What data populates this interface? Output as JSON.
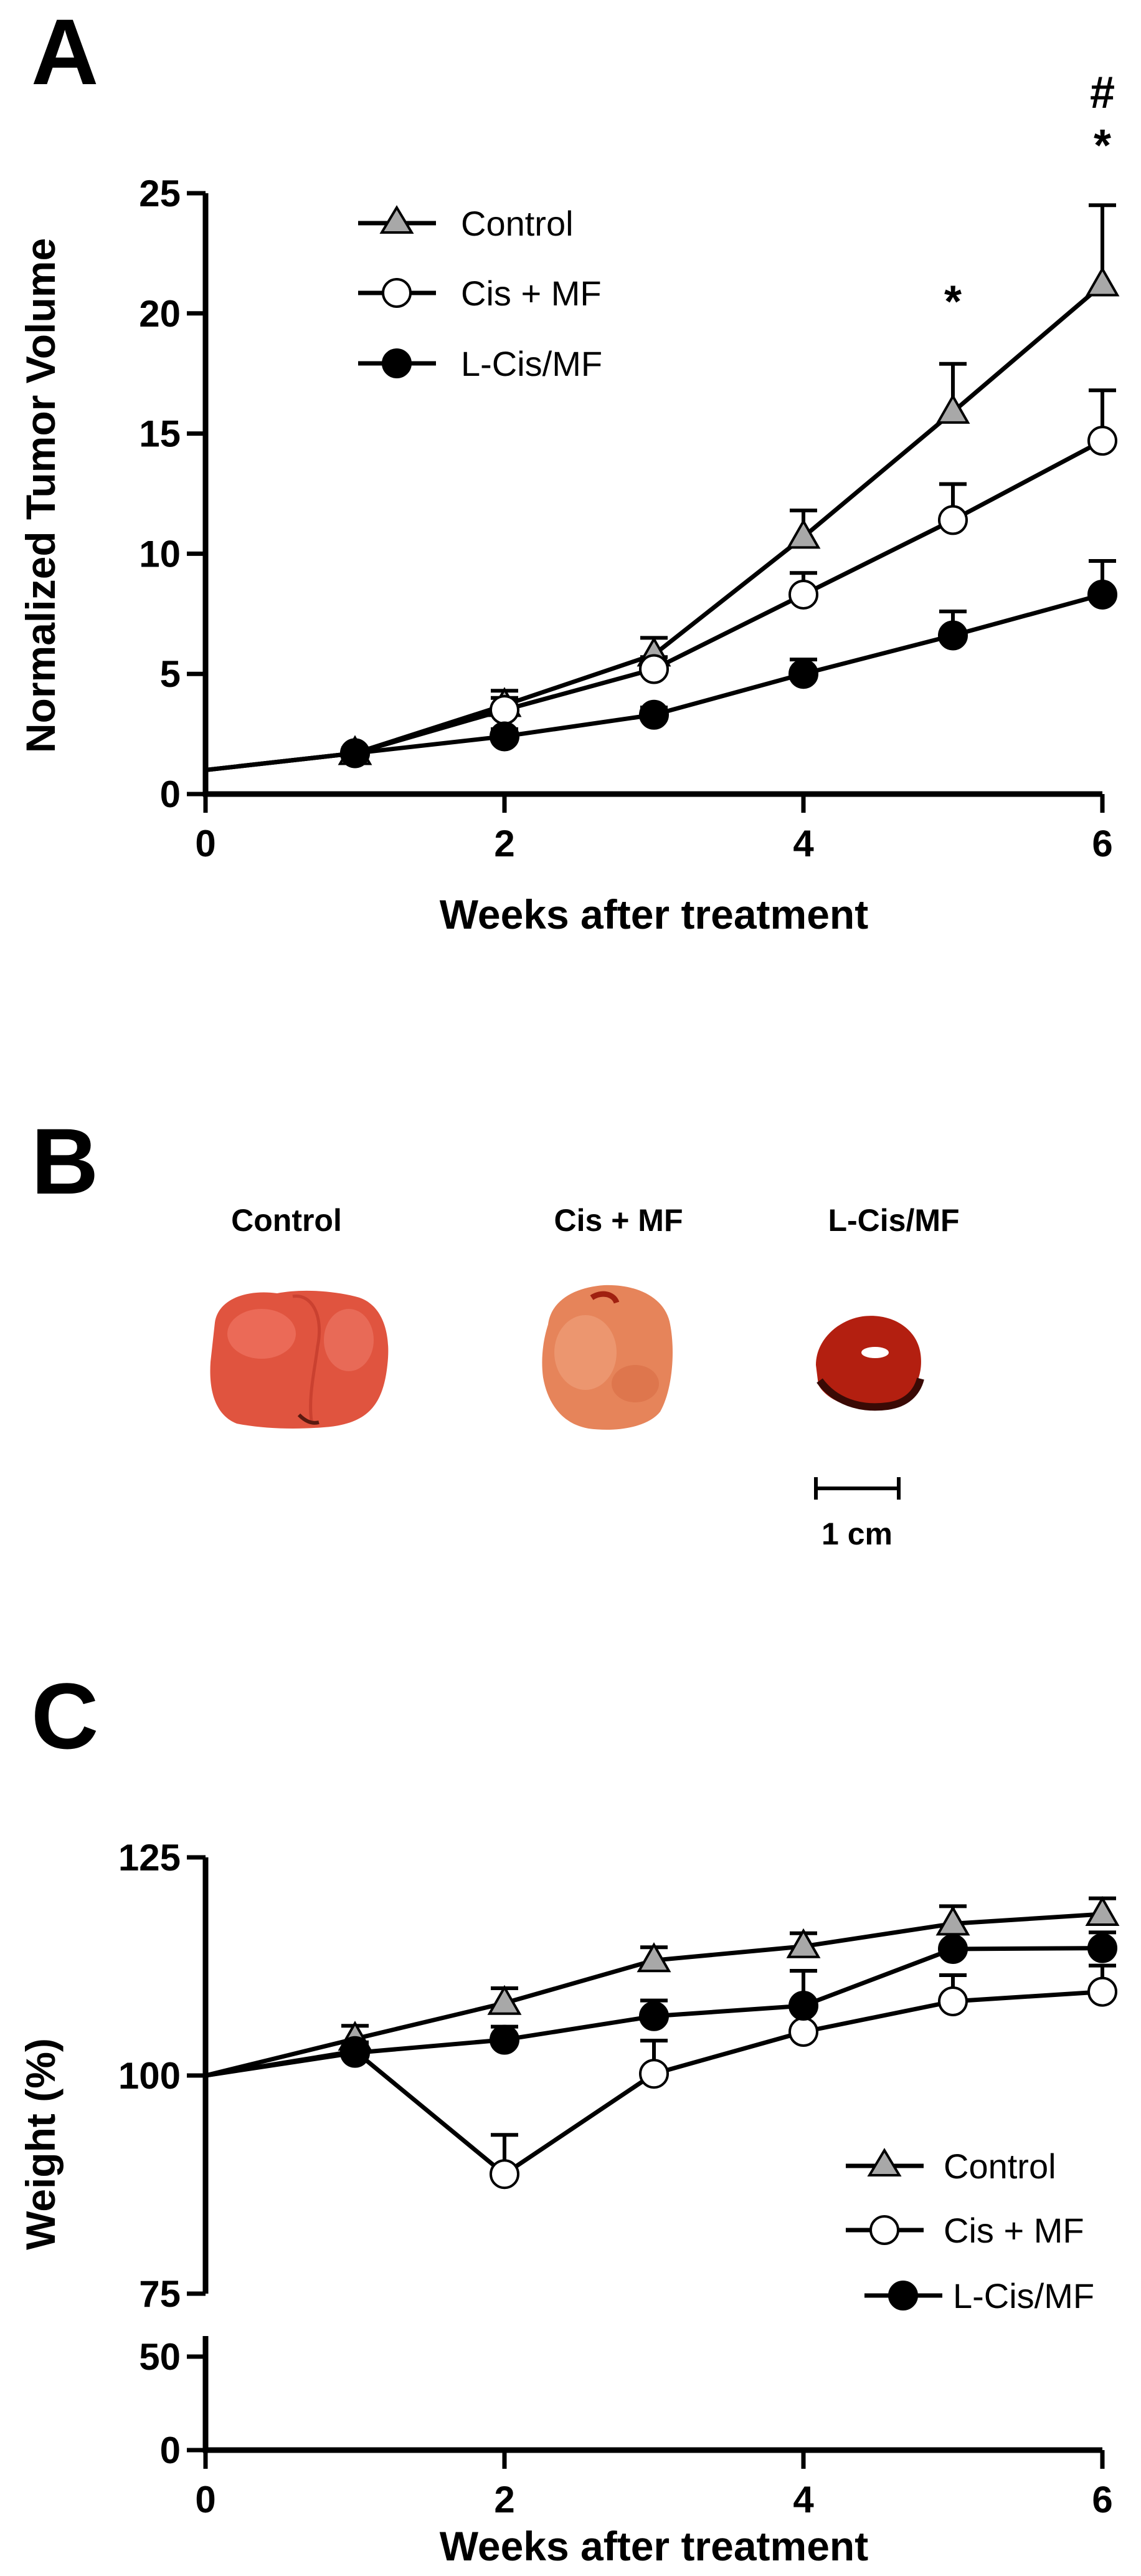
{
  "panels": {
    "a": {
      "label": "A"
    },
    "b": {
      "label": "B"
    },
    "c": {
      "label": "C"
    }
  },
  "colors": {
    "control": "#a8a8a8",
    "cis_mf": "#ffffff",
    "lcis_mf": "#000000",
    "axis": "#000000"
  },
  "photo": {
    "labels": [
      "Control",
      "Cis + MF",
      "L-Cis/MF"
    ],
    "scale_bar": "1 cm",
    "tumor_colors": [
      "#e0543f",
      "#e6845a",
      "#b31f10"
    ]
  },
  "chart_data": [
    {
      "type": "line",
      "panel": "A",
      "title": "",
      "xlabel": "Weeks after treatment",
      "ylabel": "Normalized Tumor Volume",
      "xlim": [
        0,
        6
      ],
      "ylim": [
        0,
        25
      ],
      "xticks": [
        0,
        2,
        4,
        6
      ],
      "yticks": [
        0,
        5,
        10,
        15,
        20,
        25
      ],
      "legend_position": "top-left",
      "x": [
        0,
        1,
        2,
        3,
        4,
        5,
        6
      ],
      "series": [
        {
          "name": "Control",
          "marker": "triangle",
          "values": [
            1.0,
            1.7,
            3.7,
            5.8,
            10.7,
            15.9,
            21.2
          ],
          "errors": [
            0,
            0.2,
            0.6,
            0.7,
            1.1,
            2.0,
            3.3
          ]
        },
        {
          "name": "Cis + MF",
          "marker": "circle-open",
          "values": [
            1.0,
            1.7,
            3.5,
            5.2,
            8.3,
            11.4,
            14.7
          ],
          "errors": [
            0,
            0.2,
            0.5,
            0.5,
            0.9,
            1.5,
            2.1
          ]
        },
        {
          "name": "L-Cis/MF",
          "marker": "circle-filled",
          "values": [
            1.0,
            1.7,
            2.4,
            3.3,
            5.0,
            6.6,
            8.3
          ],
          "errors": [
            0,
            0.2,
            0.3,
            0.3,
            0.6,
            1.0,
            1.4
          ]
        }
      ],
      "annotations": [
        {
          "text": "*",
          "x": 5,
          "y": 20.5
        },
        {
          "text": "*",
          "x": 6,
          "y": 27.0
        },
        {
          "text": "#",
          "x": 6,
          "y": 29.2
        }
      ]
    },
    {
      "type": "line",
      "panel": "C",
      "title": "",
      "xlabel": "Weeks after treatment",
      "ylabel": "Weight  (%)",
      "xlim": [
        0,
        6
      ],
      "ylim": [
        0,
        125
      ],
      "axis_break": [
        60,
        75
      ],
      "xticks": [
        0,
        2,
        4,
        6
      ],
      "yticks": [
        0,
        50,
        75,
        100,
        125
      ],
      "legend_position": "bottom-right",
      "x": [
        0,
        1,
        2,
        3,
        4,
        5,
        6
      ],
      "series": [
        {
          "name": "Control",
          "marker": "triangle",
          "values": [
            100,
            104.2,
            108.3,
            113.2,
            114.8,
            117.4,
            118.5
          ],
          "errors": [
            0,
            1.5,
            1.7,
            1.5,
            1.5,
            2.0,
            1.8
          ]
        },
        {
          "name": "Cis + MF",
          "marker": "circle-open",
          "values": [
            100,
            102.8,
            88.7,
            100.2,
            105.0,
            108.5,
            109.6
          ],
          "errors": [
            0,
            1.0,
            4.5,
            3.8,
            3.0,
            3.0,
            3.0
          ]
        },
        {
          "name": "L-Cis/MF",
          "marker": "circle-filled",
          "values": [
            100,
            102.6,
            104.1,
            106.8,
            108.0,
            114.5,
            114.6
          ],
          "errors": [
            0,
            1.0,
            1.5,
            1.8,
            4.0,
            2.0,
            1.8
          ]
        }
      ]
    }
  ]
}
